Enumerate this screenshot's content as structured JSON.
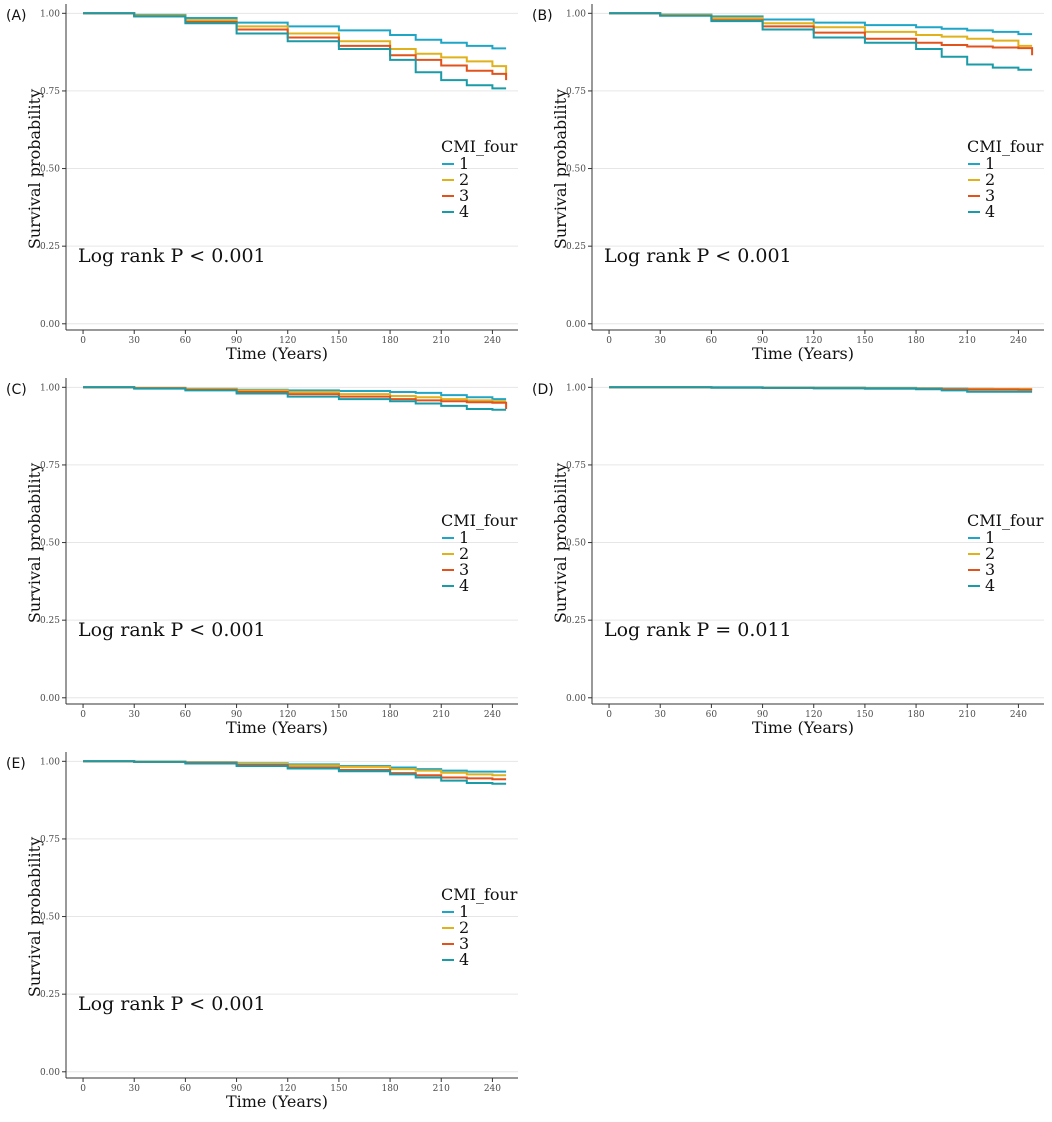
{
  "colors": {
    "series": [
      "#1fa6c7",
      "#e0b11a",
      "#e2521c",
      "#1a9ba8"
    ],
    "grid": "#e6e6e6",
    "axis": "#333333"
  },
  "chart_data": [
    {
      "panel_label": "(A)",
      "type": "line",
      "xlabel": "Time (Years)",
      "ylabel": "Survival probability",
      "xlim": [
        -10,
        255
      ],
      "ylim": [
        -0.02,
        1.03
      ],
      "xticks": [
        0,
        30,
        60,
        90,
        120,
        150,
        180,
        210,
        240
      ],
      "xtick_labels": [
        "0",
        "30",
        "60",
        "90",
        "120",
        "150",
        "180",
        "210",
        "240"
      ],
      "yticks": [
        0,
        0.25,
        0.5,
        0.75,
        1.0
      ],
      "ytick_labels": [
        "0.00",
        "0.25",
        "0.50",
        "0.75",
        "1.00"
      ],
      "legend_title": "CMI_four",
      "legend_labels": [
        "1",
        "2",
        "3",
        "4"
      ],
      "annotation": "Log rank P < 0.001",
      "x": [
        0,
        30,
        60,
        90,
        120,
        150,
        180,
        195,
        210,
        225,
        240,
        248
      ],
      "series": [
        {
          "name": "1",
          "values": [
            1.0,
            0.995,
            0.985,
            0.97,
            0.958,
            0.945,
            0.93,
            0.915,
            0.905,
            0.895,
            0.887,
            0.887
          ]
        },
        {
          "name": "2",
          "values": [
            1.0,
            0.993,
            0.978,
            0.958,
            0.935,
            0.91,
            0.885,
            0.87,
            0.858,
            0.845,
            0.83,
            0.798
          ]
        },
        {
          "name": "3",
          "values": [
            1.0,
            0.99,
            0.972,
            0.948,
            0.922,
            0.895,
            0.865,
            0.85,
            0.832,
            0.815,
            0.805,
            0.785
          ]
        },
        {
          "name": "4",
          "values": [
            1.0,
            0.99,
            0.968,
            0.935,
            0.91,
            0.885,
            0.85,
            0.81,
            0.785,
            0.768,
            0.758,
            0.758
          ]
        }
      ]
    },
    {
      "panel_label": "(B)",
      "type": "line",
      "xlabel": "Time (Years)",
      "ylabel": "Survival probability",
      "xlim": [
        -10,
        255
      ],
      "ylim": [
        -0.02,
        1.03
      ],
      "xticks": [
        0,
        30,
        60,
        90,
        120,
        150,
        180,
        210,
        240
      ],
      "xtick_labels": [
        "0",
        "30",
        "60",
        "90",
        "120",
        "150",
        "180",
        "210",
        "240"
      ],
      "yticks": [
        0,
        0.25,
        0.5,
        0.75,
        1.0
      ],
      "ytick_labels": [
        "0.00",
        "0.25",
        "0.50",
        "0.75",
        "1.00"
      ],
      "legend_title": "CMI_four",
      "legend_labels": [
        "1",
        "2",
        "3",
        "4"
      ],
      "annotation": "Log rank P < 0.001",
      "x": [
        0,
        30,
        60,
        90,
        120,
        150,
        180,
        195,
        210,
        225,
        240,
        248
      ],
      "series": [
        {
          "name": "1",
          "values": [
            1.0,
            0.996,
            0.99,
            0.98,
            0.97,
            0.962,
            0.955,
            0.95,
            0.945,
            0.94,
            0.933,
            0.933
          ]
        },
        {
          "name": "2",
          "values": [
            1.0,
            0.995,
            0.985,
            0.968,
            0.955,
            0.94,
            0.93,
            0.925,
            0.918,
            0.912,
            0.895,
            0.895
          ]
        },
        {
          "name": "3",
          "values": [
            1.0,
            0.993,
            0.978,
            0.958,
            0.938,
            0.918,
            0.905,
            0.898,
            0.893,
            0.89,
            0.888,
            0.865
          ]
        },
        {
          "name": "4",
          "values": [
            1.0,
            0.992,
            0.975,
            0.948,
            0.922,
            0.905,
            0.885,
            0.86,
            0.835,
            0.825,
            0.818,
            0.818
          ]
        }
      ]
    },
    {
      "panel_label": "(C)",
      "type": "line",
      "xlabel": "Time (Years)",
      "ylabel": "Survival probability",
      "xlim": [
        -10,
        255
      ],
      "ylim": [
        -0.02,
        1.03
      ],
      "xticks": [
        0,
        30,
        60,
        90,
        120,
        150,
        180,
        210,
        240
      ],
      "xtick_labels": [
        "0",
        "30",
        "60",
        "90",
        "120",
        "150",
        "180",
        "210",
        "240"
      ],
      "yticks": [
        0,
        0.25,
        0.5,
        0.75,
        1.0
      ],
      "ytick_labels": [
        "0.00",
        "0.25",
        "0.50",
        "0.75",
        "1.00"
      ],
      "legend_title": "CMI_four",
      "legend_labels": [
        "1",
        "2",
        "3",
        "4"
      ],
      "annotation": "Log rank P < 0.001",
      "x": [
        0,
        30,
        60,
        90,
        120,
        150,
        180,
        195,
        210,
        225,
        240,
        248
      ],
      "series": [
        {
          "name": "1",
          "values": [
            1.0,
            0.998,
            0.995,
            0.992,
            0.99,
            0.988,
            0.985,
            0.982,
            0.975,
            0.968,
            0.962,
            0.962
          ]
        },
        {
          "name": "2",
          "values": [
            1.0,
            0.998,
            0.995,
            0.99,
            0.985,
            0.978,
            0.972,
            0.968,
            0.962,
            0.958,
            0.955,
            0.955
          ]
        },
        {
          "name": "3",
          "values": [
            1.0,
            0.997,
            0.992,
            0.985,
            0.978,
            0.97,
            0.962,
            0.958,
            0.955,
            0.952,
            0.95,
            0.93
          ]
        },
        {
          "name": "4",
          "values": [
            1.0,
            0.996,
            0.99,
            0.98,
            0.97,
            0.962,
            0.955,
            0.948,
            0.94,
            0.93,
            0.928,
            0.928
          ]
        }
      ]
    },
    {
      "panel_label": "(D)",
      "type": "line",
      "xlabel": "Time (Years)",
      "ylabel": "Survival probability",
      "xlim": [
        -10,
        255
      ],
      "ylim": [
        -0.02,
        1.03
      ],
      "xticks": [
        0,
        30,
        60,
        90,
        120,
        150,
        180,
        210,
        240
      ],
      "xtick_labels": [
        "0",
        "30",
        "60",
        "90",
        "120",
        "150",
        "180",
        "210",
        "240"
      ],
      "yticks": [
        0,
        0.25,
        0.5,
        0.75,
        1.0
      ],
      "ytick_labels": [
        "0.00",
        "0.25",
        "0.50",
        "0.75",
        "1.00"
      ],
      "legend_title": "CMI_four",
      "legend_labels": [
        "1",
        "2",
        "3",
        "4"
      ],
      "annotation": "Log rank P = 0.011",
      "x": [
        0,
        30,
        60,
        90,
        120,
        150,
        180,
        195,
        210,
        225,
        240,
        248
      ],
      "series": [
        {
          "name": "1",
          "values": [
            1.0,
            1.0,
            1.0,
            0.999,
            0.999,
            0.998,
            0.997,
            0.996,
            0.995,
            0.994,
            0.994,
            0.994
          ]
        },
        {
          "name": "2",
          "values": [
            1.0,
            1.0,
            0.999,
            0.999,
            0.998,
            0.997,
            0.996,
            0.995,
            0.995,
            0.995,
            0.995,
            0.995
          ]
        },
        {
          "name": "3",
          "values": [
            1.0,
            1.0,
            0.999,
            0.998,
            0.997,
            0.996,
            0.995,
            0.994,
            0.993,
            0.993,
            0.992,
            0.992
          ]
        },
        {
          "name": "4",
          "values": [
            1.0,
            1.0,
            0.999,
            0.998,
            0.997,
            0.996,
            0.994,
            0.99,
            0.986,
            0.986,
            0.986,
            0.986
          ]
        }
      ]
    },
    {
      "panel_label": "(E)",
      "type": "line",
      "xlabel": "Time (Years)",
      "ylabel": "Survival probability",
      "xlim": [
        -10,
        255
      ],
      "ylim": [
        -0.02,
        1.03
      ],
      "xticks": [
        0,
        30,
        60,
        90,
        120,
        150,
        180,
        210,
        240
      ],
      "xtick_labels": [
        "0",
        "30",
        "60",
        "90",
        "120",
        "150",
        "180",
        "210",
        "240"
      ],
      "yticks": [
        0,
        0.25,
        0.5,
        0.75,
        1.0
      ],
      "ytick_labels": [
        "0.00",
        "0.25",
        "0.50",
        "0.75",
        "1.00"
      ],
      "legend_title": "CMI_four",
      "legend_labels": [
        "1",
        "2",
        "3",
        "4"
      ],
      "annotation": "Log rank P < 0.001",
      "x": [
        0,
        30,
        60,
        90,
        120,
        150,
        180,
        195,
        210,
        225,
        240,
        248
      ],
      "series": [
        {
          "name": "1",
          "values": [
            1.0,
            0.999,
            0.997,
            0.994,
            0.99,
            0.985,
            0.98,
            0.975,
            0.97,
            0.967,
            0.967,
            0.967
          ]
        },
        {
          "name": "2",
          "values": [
            1.0,
            0.999,
            0.996,
            0.992,
            0.987,
            0.982,
            0.975,
            0.97,
            0.963,
            0.958,
            0.955,
            0.955
          ]
        },
        {
          "name": "3",
          "values": [
            1.0,
            0.998,
            0.995,
            0.988,
            0.98,
            0.972,
            0.962,
            0.955,
            0.948,
            0.945,
            0.942,
            0.942
          ]
        },
        {
          "name": "4",
          "values": [
            1.0,
            0.998,
            0.993,
            0.985,
            0.977,
            0.968,
            0.958,
            0.948,
            0.938,
            0.93,
            0.928,
            0.928
          ]
        }
      ]
    }
  ]
}
